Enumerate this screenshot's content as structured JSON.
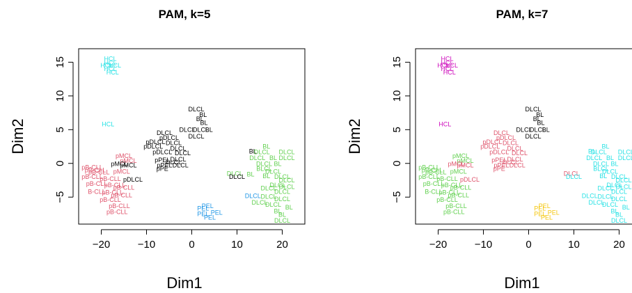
{
  "palette": {
    "c1": "#DF536B",
    "c2": "#000000",
    "c3": "#61D04F",
    "c4": "#2297E6",
    "c5": "#28E2E5",
    "c6": "#CD0BBC",
    "c7": "#F5C710"
  },
  "chart_data": [
    {
      "type": "scatter",
      "title": "PAM, k=5",
      "xlabel": "Dim1",
      "ylabel": "Dim2",
      "xlim": [
        -25,
        25
      ],
      "ylim": [
        -9,
        17
      ],
      "xticks": [
        -20,
        -10,
        0,
        10,
        20
      ],
      "yticks": [
        -5,
        0,
        5,
        10,
        15
      ],
      "grid": false,
      "points": [
        {
          "x": -18,
          "y": 15.5,
          "label": "HCL",
          "cluster": 5
        },
        {
          "x": -18,
          "y": 14.9,
          "label": "HCL",
          "cluster": 5
        },
        {
          "x": -18.8,
          "y": 14.5,
          "label": "HCL",
          "cluster": 5
        },
        {
          "x": -17,
          "y": 14.5,
          "label": "HCL",
          "cluster": 5
        },
        {
          "x": -18,
          "y": 14,
          "label": "HCL",
          "cluster": 5
        },
        {
          "x": -17.5,
          "y": 13.5,
          "label": "HCL",
          "cluster": 5
        },
        {
          "x": -18.5,
          "y": 5.8,
          "label": "HCL",
          "cluster": 5
        },
        {
          "x": 1,
          "y": 8,
          "label": "DLCL",
          "cluster": 2
        },
        {
          "x": 2.5,
          "y": 7.2,
          "label": "BL",
          "cluster": 2
        },
        {
          "x": 1.8,
          "y": 6.6,
          "label": "BL",
          "cluster": 2
        },
        {
          "x": 2.7,
          "y": 6,
          "label": "BL",
          "cluster": 2
        },
        {
          "x": -1,
          "y": 5,
          "label": "DLCL",
          "cluster": 2
        },
        {
          "x": 2,
          "y": 5,
          "label": "DLCL",
          "cluster": 2
        },
        {
          "x": 3.8,
          "y": 5,
          "label": "BL",
          "cluster": 2
        },
        {
          "x": 1,
          "y": 4,
          "label": "DLCL",
          "cluster": 2
        },
        {
          "x": -6,
          "y": 4.5,
          "label": "DLCL",
          "cluster": 2
        },
        {
          "x": -5,
          "y": 3.8,
          "label": "pDLCL",
          "cluster": 2
        },
        {
          "x": -8,
          "y": 3.2,
          "label": "pDLCL",
          "cluster": 2
        },
        {
          "x": -4,
          "y": 3,
          "label": "DLCL",
          "cluster": 2
        },
        {
          "x": -8.5,
          "y": 2.5,
          "label": "pDLCL",
          "cluster": 2
        },
        {
          "x": -3,
          "y": 2.2,
          "label": "DLCL",
          "cluster": 2
        },
        {
          "x": -6.5,
          "y": 1.7,
          "label": "pDLCL",
          "cluster": 2
        },
        {
          "x": -2,
          "y": 1.5,
          "label": "DLCL",
          "cluster": 2
        },
        {
          "x": -3,
          "y": 0.6,
          "label": "DLCL",
          "cluster": 2
        },
        {
          "x": -6.5,
          "y": 0.5,
          "label": "pPEL",
          "cluster": 2
        },
        {
          "x": -4,
          "y": 0.2,
          "label": "DLCL",
          "cluster": 2
        },
        {
          "x": -6,
          "y": -0.3,
          "label": "pPEL",
          "cluster": 2
        },
        {
          "x": -2.5,
          "y": -0.3,
          "label": "DLCL",
          "cluster": 2
        },
        {
          "x": -6.5,
          "y": -0.8,
          "label": "pPE",
          "cluster": 2
        },
        {
          "x": -15,
          "y": 1.1,
          "label": "pMCL",
          "cluster": 1
        },
        {
          "x": -14,
          "y": 0.4,
          "label": "pMCL",
          "cluster": 1
        },
        {
          "x": -16,
          "y": -0.1,
          "label": "pMCL",
          "cluster": 2
        },
        {
          "x": -14,
          "y": -0.3,
          "label": "pMCL",
          "cluster": 2
        },
        {
          "x": -22,
          "y": -0.6,
          "label": "pB-CLL",
          "cluster": 1
        },
        {
          "x": -21.3,
          "y": -1,
          "label": "pB-CLL",
          "cluster": 1
        },
        {
          "x": -20.5,
          "y": -1.3,
          "label": "pB-CLL",
          "cluster": 1
        },
        {
          "x": -15.5,
          "y": -1.2,
          "label": "pMCL",
          "cluster": 1
        },
        {
          "x": -22,
          "y": -2,
          "label": "pB-CLL",
          "cluster": 1
        },
        {
          "x": -18,
          "y": -2.3,
          "label": "pB-CLL",
          "cluster": 1
        },
        {
          "x": -13,
          "y": -2.4,
          "label": "pDLCL",
          "cluster": 2
        },
        {
          "x": -21,
          "y": -3,
          "label": "pB-CLL",
          "cluster": 1
        },
        {
          "x": -17,
          "y": -3.2,
          "label": "pB-CLL",
          "cluster": 1
        },
        {
          "x": -15,
          "y": -3.6,
          "label": "pB-CLL",
          "cluster": 1
        },
        {
          "x": -21,
          "y": -4.2,
          "label": "B-CLL",
          "cluster": 1
        },
        {
          "x": -17.5,
          "y": -4.3,
          "label": "pB-CLL",
          "cluster": 1
        },
        {
          "x": -15.5,
          "y": -4.7,
          "label": "pB-CLL",
          "cluster": 1
        },
        {
          "x": -18,
          "y": -5.4,
          "label": "pB-CLL",
          "cluster": 1
        },
        {
          "x": -16,
          "y": -6.3,
          "label": "pB-CLL",
          "cluster": 1
        },
        {
          "x": -16.5,
          "y": -7.2,
          "label": "pB-CLL",
          "cluster": 1
        },
        {
          "x": 16.5,
          "y": 2.5,
          "label": "BL",
          "cluster": 3
        },
        {
          "x": 13.5,
          "y": 1.8,
          "label": "BL",
          "cluster": 2
        },
        {
          "x": 15.5,
          "y": 1.7,
          "label": "DLCL",
          "cluster": 3
        },
        {
          "x": 21,
          "y": 1.7,
          "label": "DLCL",
          "cluster": 3
        },
        {
          "x": 14.5,
          "y": 0.8,
          "label": "DLCL",
          "cluster": 3
        },
        {
          "x": 18,
          "y": 0.8,
          "label": "BL",
          "cluster": 3
        },
        {
          "x": 21,
          "y": 0.8,
          "label": "DLCL",
          "cluster": 3
        },
        {
          "x": 16,
          "y": -0.1,
          "label": "DLCL",
          "cluster": 3
        },
        {
          "x": 19,
          "y": -0.1,
          "label": "BL",
          "cluster": 3
        },
        {
          "x": 16,
          "y": -0.8,
          "label": "BLCL",
          "cluster": 3
        },
        {
          "x": 18,
          "y": -1.2,
          "label": "DLCL",
          "cluster": 3
        },
        {
          "x": 9.5,
          "y": -1.5,
          "label": "DLCL",
          "cluster": 3
        },
        {
          "x": 13,
          "y": -1.6,
          "label": "BL",
          "cluster": 3
        },
        {
          "x": 16.5,
          "y": -1.9,
          "label": "BL",
          "cluster": 3
        },
        {
          "x": 20,
          "y": -2,
          "label": "DLCL",
          "cluster": 3
        },
        {
          "x": 10,
          "y": -2,
          "label": "DLCL",
          "cluster": 2
        },
        {
          "x": 21,
          "y": -2.5,
          "label": "DLCL",
          "cluster": 3
        },
        {
          "x": 19,
          "y": -3.2,
          "label": "DLCL",
          "cluster": 3
        },
        {
          "x": 17,
          "y": -3.7,
          "label": "DLCL",
          "cluster": 3
        },
        {
          "x": 21,
          "y": -3.5,
          "label": "DLCL",
          "cluster": 3
        },
        {
          "x": 20,
          "y": -4.2,
          "label": "DLCL",
          "cluster": 3
        },
        {
          "x": 13.5,
          "y": -4.8,
          "label": "DLCL",
          "cluster": 4
        },
        {
          "x": 17,
          "y": -4.9,
          "label": "DLCL",
          "cluster": 3
        },
        {
          "x": 20,
          "y": -5.3,
          "label": "DLCL",
          "cluster": 3
        },
        {
          "x": 15,
          "y": -5.8,
          "label": "DLCL",
          "cluster": 3
        },
        {
          "x": 18,
          "y": -6.1,
          "label": "DLCL",
          "cluster": 3
        },
        {
          "x": 21.5,
          "y": -6.5,
          "label": "BL",
          "cluster": 3
        },
        {
          "x": 19,
          "y": -7.1,
          "label": "BL",
          "cluster": 3
        },
        {
          "x": 20,
          "y": -7.6,
          "label": "BL",
          "cluster": 3
        },
        {
          "x": 20,
          "y": -8.5,
          "label": "DLCL",
          "cluster": 3
        },
        {
          "x": 3.5,
          "y": -6.3,
          "label": "PEL",
          "cluster": 4
        },
        {
          "x": 2.5,
          "y": -6.7,
          "label": "PEL",
          "cluster": 4
        },
        {
          "x": 5.5,
          "y": -7.3,
          "label": "PEL",
          "cluster": 4
        },
        {
          "x": 2.5,
          "y": -7.5,
          "label": "PEL",
          "cluster": 4
        },
        {
          "x": 4,
          "y": -8,
          "label": "PEL",
          "cluster": 4
        }
      ]
    },
    {
      "type": "scatter",
      "title": "PAM, k=7",
      "xlabel": "Dim1",
      "ylabel": "Dim2",
      "xlim": [
        -25,
        25
      ],
      "ylim": [
        -9,
        17
      ],
      "xticks": [
        -20,
        -10,
        0,
        10,
        20
      ],
      "yticks": [
        -5,
        0,
        5,
        10,
        15
      ],
      "grid": false,
      "points": [
        {
          "x": -18,
          "y": 15.5,
          "label": "HCL",
          "cluster": 6
        },
        {
          "x": -18,
          "y": 14.9,
          "label": "HCL",
          "cluster": 6
        },
        {
          "x": -18.8,
          "y": 14.5,
          "label": "HCL",
          "cluster": 6
        },
        {
          "x": -17,
          "y": 14.5,
          "label": "HCL",
          "cluster": 6
        },
        {
          "x": -18,
          "y": 14,
          "label": "HCL",
          "cluster": 6
        },
        {
          "x": -17.5,
          "y": 13.5,
          "label": "HCL",
          "cluster": 6
        },
        {
          "x": -18.5,
          "y": 5.8,
          "label": "HCL",
          "cluster": 6
        },
        {
          "x": 1,
          "y": 8,
          "label": "DLCL",
          "cluster": 2
        },
        {
          "x": 2.5,
          "y": 7.2,
          "label": "BL",
          "cluster": 2
        },
        {
          "x": 1.8,
          "y": 6.6,
          "label": "BL",
          "cluster": 2
        },
        {
          "x": 2.7,
          "y": 6,
          "label": "BL",
          "cluster": 2
        },
        {
          "x": -1,
          "y": 5,
          "label": "DLCL",
          "cluster": 2
        },
        {
          "x": 2,
          "y": 5,
          "label": "DLCL",
          "cluster": 2
        },
        {
          "x": 3.8,
          "y": 5,
          "label": "BL",
          "cluster": 2
        },
        {
          "x": 1,
          "y": 4,
          "label": "DLCL",
          "cluster": 2
        },
        {
          "x": -6,
          "y": 4.5,
          "label": "DLCL",
          "cluster": 1
        },
        {
          "x": -5,
          "y": 3.8,
          "label": "pDLCL",
          "cluster": 1
        },
        {
          "x": -8,
          "y": 3.2,
          "label": "pDLCL",
          "cluster": 1
        },
        {
          "x": -4,
          "y": 3,
          "label": "DLCL",
          "cluster": 1
        },
        {
          "x": -8.5,
          "y": 2.5,
          "label": "pDLCL",
          "cluster": 1
        },
        {
          "x": -3,
          "y": 2.2,
          "label": "DLCL",
          "cluster": 1
        },
        {
          "x": -6.5,
          "y": 1.7,
          "label": "pDLCL",
          "cluster": 1
        },
        {
          "x": -2,
          "y": 1.5,
          "label": "DLCL",
          "cluster": 1
        },
        {
          "x": -3,
          "y": 0.6,
          "label": "DLCL",
          "cluster": 1
        },
        {
          "x": -6.5,
          "y": 0.5,
          "label": "pPEL",
          "cluster": 1
        },
        {
          "x": -4,
          "y": 0.2,
          "label": "DLCL",
          "cluster": 1
        },
        {
          "x": -6,
          "y": -0.3,
          "label": "pPEL",
          "cluster": 1
        },
        {
          "x": -2.5,
          "y": -0.3,
          "label": "DLCL",
          "cluster": 1
        },
        {
          "x": -6.5,
          "y": -0.8,
          "label": "pPE",
          "cluster": 1
        },
        {
          "x": -15,
          "y": 1.1,
          "label": "pMCL",
          "cluster": 3
        },
        {
          "x": -14,
          "y": 0.4,
          "label": "pMCL",
          "cluster": 3
        },
        {
          "x": -16,
          "y": -0.1,
          "label": "pMCL",
          "cluster": 1
        },
        {
          "x": -14,
          "y": -0.3,
          "label": "pMCL",
          "cluster": 1
        },
        {
          "x": -22,
          "y": -0.6,
          "label": "pB-CLL",
          "cluster": 3
        },
        {
          "x": -21.3,
          "y": -1,
          "label": "pB-CLL",
          "cluster": 3
        },
        {
          "x": -20.5,
          "y": -1.3,
          "label": "pB-CLL",
          "cluster": 3
        },
        {
          "x": -15.5,
          "y": -1.2,
          "label": "pMCL",
          "cluster": 3
        },
        {
          "x": -22,
          "y": -2,
          "label": "pB-CLL",
          "cluster": 3
        },
        {
          "x": -18,
          "y": -2.3,
          "label": "pB-CLL",
          "cluster": 3
        },
        {
          "x": -13,
          "y": -2.4,
          "label": "pDLCL",
          "cluster": 1
        },
        {
          "x": -21,
          "y": -3,
          "label": "pB-CLL",
          "cluster": 3
        },
        {
          "x": -17,
          "y": -3.2,
          "label": "pB-CLL",
          "cluster": 3
        },
        {
          "x": -15,
          "y": -3.6,
          "label": "pB-CLL",
          "cluster": 3
        },
        {
          "x": -21,
          "y": -4.2,
          "label": "B-CLL",
          "cluster": 3
        },
        {
          "x": -17.5,
          "y": -4.3,
          "label": "pB-CLL",
          "cluster": 3
        },
        {
          "x": -15.5,
          "y": -4.7,
          "label": "pB-CLL",
          "cluster": 3
        },
        {
          "x": -18,
          "y": -5.4,
          "label": "pB-CLL",
          "cluster": 3
        },
        {
          "x": -16,
          "y": -6.3,
          "label": "pB-CLL",
          "cluster": 3
        },
        {
          "x": -16.5,
          "y": -7.2,
          "label": "pB-CLL",
          "cluster": 3
        },
        {
          "x": 17,
          "y": 2.5,
          "label": "BL",
          "cluster": 4
        },
        {
          "x": 14,
          "y": 1.8,
          "label": "BL",
          "cluster": 4
        },
        {
          "x": 15.5,
          "y": 1.7,
          "label": "DLCL",
          "cluster": 4
        },
        {
          "x": 21.5,
          "y": 1.7,
          "label": "DLCL",
          "cluster": 5
        },
        {
          "x": 14.5,
          "y": 0.8,
          "label": "DLCL",
          "cluster": 4
        },
        {
          "x": 18,
          "y": 0.8,
          "label": "BL",
          "cluster": 4
        },
        {
          "x": 21.5,
          "y": 0.8,
          "label": "DLCL",
          "cluster": 5
        },
        {
          "x": 16,
          "y": -0.1,
          "label": "DLCL",
          "cluster": 4
        },
        {
          "x": 19,
          "y": -0.1,
          "label": "BL",
          "cluster": 5
        },
        {
          "x": 16,
          "y": -0.8,
          "label": "BLCL",
          "cluster": 4
        },
        {
          "x": 18,
          "y": -1.2,
          "label": "DLCL",
          "cluster": 4
        },
        {
          "x": 9.5,
          "y": -1.5,
          "label": "DLCL",
          "cluster": 1
        },
        {
          "x": 10,
          "y": -2,
          "label": "DLCL",
          "cluster": 4
        },
        {
          "x": 16.5,
          "y": -1.9,
          "label": "BL",
          "cluster": 5
        },
        {
          "x": 20,
          "y": -2,
          "label": "DLCL",
          "cluster": 5
        },
        {
          "x": 21,
          "y": -2.5,
          "label": "DLCL",
          "cluster": 5
        },
        {
          "x": 19,
          "y": -3.2,
          "label": "DLCL",
          "cluster": 5
        },
        {
          "x": 17,
          "y": -3.7,
          "label": "DLCL",
          "cluster": 5
        },
        {
          "x": 21,
          "y": -3.5,
          "label": "DLCL",
          "cluster": 5
        },
        {
          "x": 20,
          "y": -4.2,
          "label": "DLCL",
          "cluster": 5
        },
        {
          "x": 13.5,
          "y": -4.8,
          "label": "DLCL",
          "cluster": 4
        },
        {
          "x": 17,
          "y": -4.9,
          "label": "DLCL",
          "cluster": 5
        },
        {
          "x": 20,
          "y": -5.3,
          "label": "DLCL",
          "cluster": 5
        },
        {
          "x": 15,
          "y": -5.8,
          "label": "DLCL",
          "cluster": 4
        },
        {
          "x": 18,
          "y": -6.1,
          "label": "DLCL",
          "cluster": 4
        },
        {
          "x": 21.5,
          "y": -6.5,
          "label": "BL",
          "cluster": 5
        },
        {
          "x": 19,
          "y": -7.1,
          "label": "BL",
          "cluster": 5
        },
        {
          "x": 20,
          "y": -7.6,
          "label": "BL",
          "cluster": 5
        },
        {
          "x": 20,
          "y": -8.5,
          "label": "DLCL",
          "cluster": 5
        },
        {
          "x": 3.5,
          "y": -6.3,
          "label": "PEL",
          "cluster": 7
        },
        {
          "x": 2.5,
          "y": -6.7,
          "label": "PEL",
          "cluster": 7
        },
        {
          "x": 5.5,
          "y": -7.3,
          "label": "PEL",
          "cluster": 7
        },
        {
          "x": 2.5,
          "y": -7.5,
          "label": "PEL",
          "cluster": 7
        },
        {
          "x": 4,
          "y": -8,
          "label": "PEL",
          "cluster": 7
        }
      ]
    }
  ],
  "cluster_colors": [
    {
      "1": "#DF536B",
      "2": "#000000",
      "3": "#61D04F",
      "4": "#2297E6",
      "5": "#28E2E5"
    },
    {
      "1": "#DF536B",
      "2": "#000000",
      "3": "#61D04F",
      "4": "#28E2E5",
      "5": "#28E2E5",
      "6": "#CD0BBC",
      "7": "#F5C710"
    }
  ]
}
